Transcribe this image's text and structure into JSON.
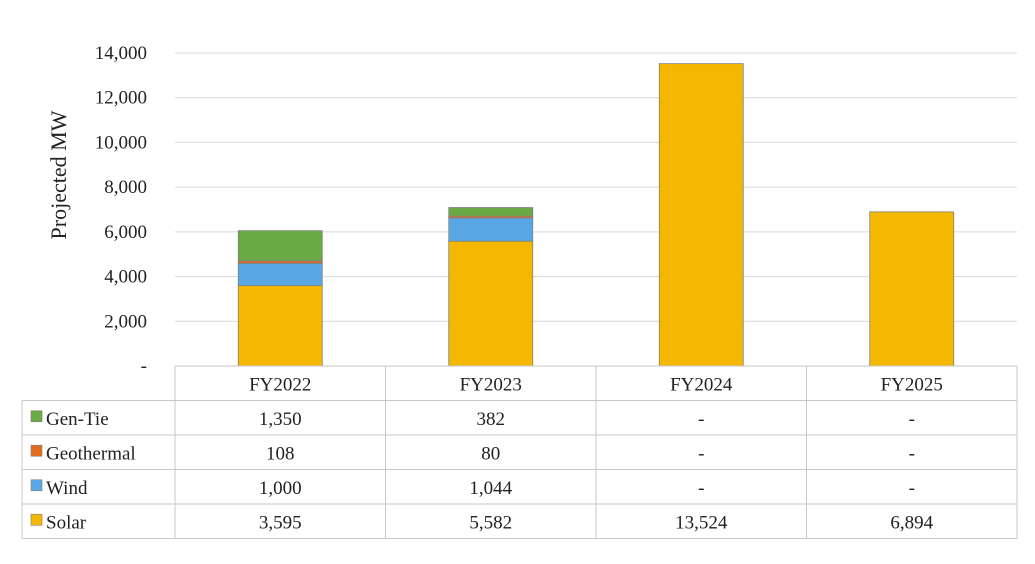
{
  "chart_data": {
    "type": "bar",
    "stacked": true,
    "title": "",
    "xlabel": "",
    "ylabel": "Projected MW",
    "ylim": [
      0,
      14000
    ],
    "yticks": [
      0,
      2000,
      4000,
      6000,
      8000,
      10000,
      12000,
      14000
    ],
    "ytick_labels": [
      "-",
      "2,000",
      "4,000",
      "6,000",
      "8,000",
      "10,000",
      "12,000",
      "14,000"
    ],
    "grid": true,
    "legend_placement": "data table",
    "categories": [
      "FY2022",
      "FY2023",
      "FY2024",
      "FY2025"
    ],
    "series": [
      {
        "name": "Solar",
        "color": "#f5b800",
        "values": [
          3595,
          5582,
          13524,
          6894
        ],
        "labels": [
          "3,595",
          "5,582",
          "13,524",
          "6,894"
        ]
      },
      {
        "name": "Wind",
        "color": "#5aa7e6",
        "values": [
          1000,
          1044,
          0,
          0
        ],
        "labels": [
          "1,000",
          "1,044",
          "-",
          "-"
        ]
      },
      {
        "name": "Geothermal",
        "color": "#e36c1c",
        "values": [
          108,
          80,
          0,
          0
        ],
        "labels": [
          "108",
          "80",
          "-",
          "-"
        ]
      },
      {
        "name": "Gen-Tie",
        "color": "#6aaa45",
        "values": [
          1350,
          382,
          0,
          0
        ],
        "labels": [
          "1,350",
          "382",
          "-",
          "-"
        ]
      }
    ],
    "table_row_order": [
      "Gen-Tie",
      "Geothermal",
      "Wind",
      "Solar"
    ]
  }
}
